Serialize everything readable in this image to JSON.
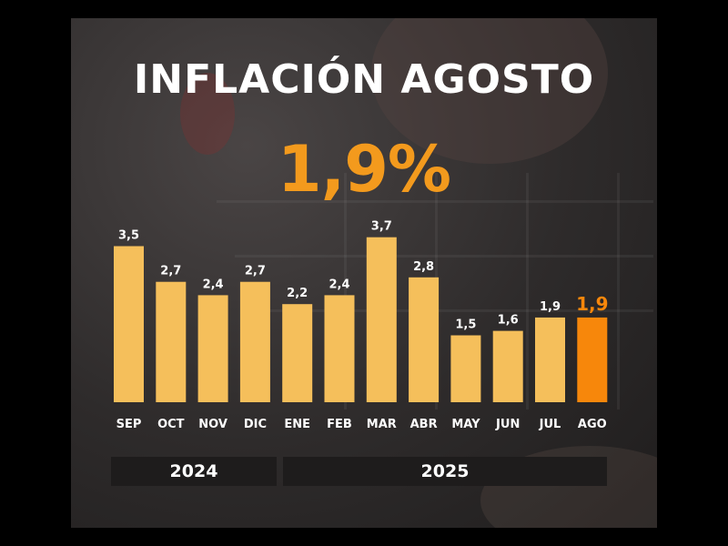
{
  "title": "INFLACIÓN AGOSTO",
  "headline_value": "1,9%",
  "colors": {
    "bar": "#f5bf5b",
    "highlight": "#f7870b",
    "headline": "#f39a1d",
    "label": "#ffffff"
  },
  "chart_data": {
    "type": "bar",
    "categories": [
      "SEP",
      "OCT",
      "NOV",
      "DIC",
      "ENE",
      "FEB",
      "MAR",
      "ABR",
      "MAY",
      "JUN",
      "JUL",
      "AGO"
    ],
    "values": [
      3.5,
      2.7,
      2.4,
      2.7,
      2.2,
      2.4,
      3.7,
      2.8,
      1.5,
      1.6,
      1.9,
      1.9
    ],
    "value_labels": [
      "3,5",
      "2,7",
      "2,4",
      "2,7",
      "2,2",
      "2,4",
      "3,7",
      "2,8",
      "1,5",
      "1,6",
      "1,9",
      "1,9"
    ],
    "highlight_index": 11,
    "year_groups": [
      {
        "label": "2024",
        "categories": [
          "SEP",
          "OCT",
          "NOV",
          "DIC"
        ]
      },
      {
        "label": "2025",
        "categories": [
          "ENE",
          "FEB",
          "MAR",
          "ABR",
          "MAY",
          "JUN",
          "JUL",
          "AGO"
        ]
      }
    ],
    "grid": false,
    "ylim": [
      0,
      3.7
    ]
  }
}
